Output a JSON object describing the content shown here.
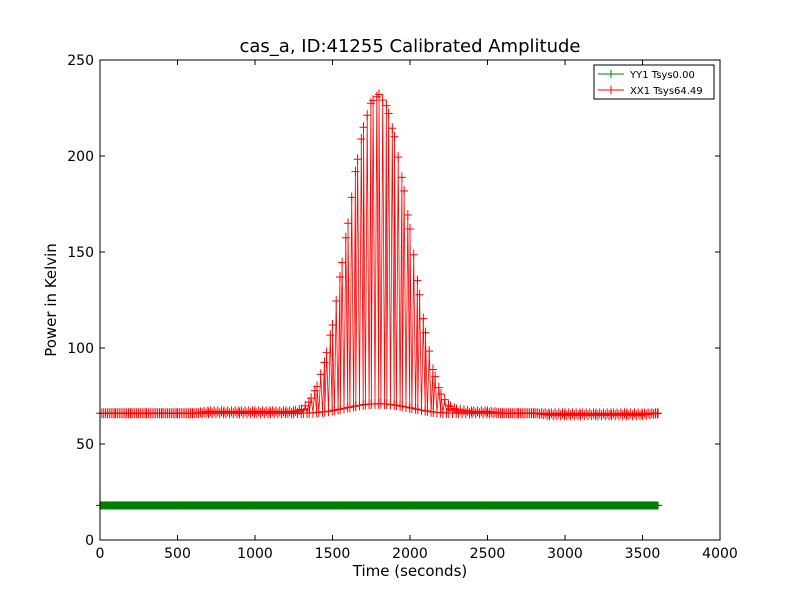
{
  "chart_data": {
    "type": "line",
    "title": "cas_a, ID:41255 Calibrated Amplitude",
    "xlabel": "Time (seconds)",
    "ylabel": "Power in Kelvin",
    "xlim": [
      0,
      4000
    ],
    "ylim": [
      0,
      250
    ],
    "x_ticks": [
      "0",
      "500",
      "1000",
      "1500",
      "2000",
      "2500",
      "3000",
      "3500",
      "4000"
    ],
    "y_ticks": [
      "0",
      "50",
      "100",
      "150",
      "200",
      "250"
    ],
    "grid": false,
    "legend_position": "top-right",
    "colors": {
      "YY1": "#008000",
      "XX1": "#ff0000"
    },
    "series": [
      {
        "name": "YY1 Tsys0.00",
        "marker": "+",
        "x": [
          0,
          500,
          1000,
          1500,
          2000,
          2500,
          3000,
          3500,
          3600
        ],
        "y": [
          18,
          18,
          18,
          18,
          18,
          18,
          18,
          18,
          18
        ]
      },
      {
        "name": "XX1 Tsys64.49",
        "marker": "+",
        "x": [
          0,
          100,
          200,
          300,
          400,
          500,
          600,
          700,
          800,
          900,
          1000,
          1100,
          1200,
          1250,
          1300,
          1350,
          1400,
          1450,
          1500,
          1550,
          1600,
          1650,
          1700,
          1750,
          1800,
          1850,
          1900,
          1950,
          2000,
          2050,
          2100,
          2150,
          2200,
          2250,
          2300,
          2400,
          2500,
          2600,
          2700,
          2800,
          2900,
          3000,
          3100,
          3200,
          3300,
          3400,
          3500,
          3600
        ],
        "y": [
          66,
          66,
          66,
          66,
          66,
          66,
          66,
          67,
          67,
          67,
          67,
          67,
          67,
          67,
          68,
          72,
          80,
          93,
          112,
          138,
          165,
          193,
          215,
          228,
          232,
          226,
          210,
          188,
          162,
          134,
          108,
          88,
          76,
          70,
          68,
          67,
          67,
          66,
          66,
          66,
          65,
          65,
          65,
          65,
          65,
          65,
          65,
          66
        ]
      }
    ]
  }
}
